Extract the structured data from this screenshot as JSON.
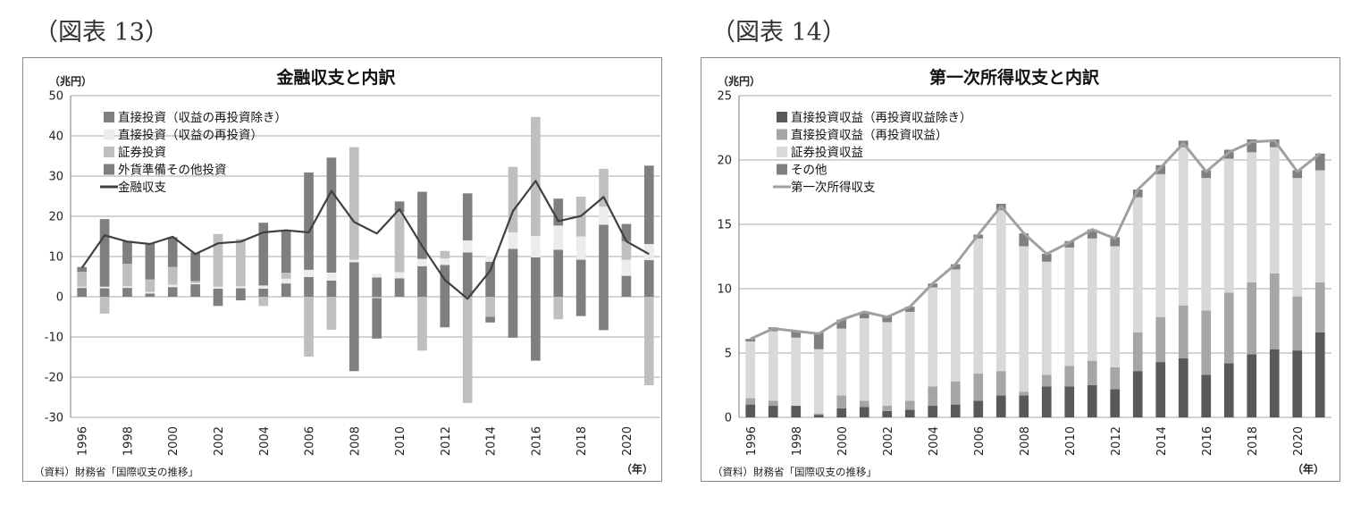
{
  "figures": [
    {
      "label": "（図表 13）"
    },
    {
      "label": "（図表 14）"
    }
  ],
  "chart_data": [
    {
      "type": "bar",
      "stacked": true,
      "title": "金融収支と内訳",
      "unit_label": "（兆円）",
      "x_unit_label": "（年）",
      "source": "（資料）財務省「国際収支の推移」",
      "ylim": [
        -30,
        50
      ],
      "yticks": [
        50,
        40,
        30,
        20,
        10,
        0,
        -10,
        -20,
        -30
      ],
      "grid": true,
      "legend_position": "top-left",
      "x": [
        1996,
        1997,
        1998,
        1999,
        2000,
        2001,
        2002,
        2003,
        2004,
        2005,
        2006,
        2007,
        2008,
        2009,
        2010,
        2011,
        2012,
        2013,
        2014,
        2015,
        2016,
        2017,
        2018,
        2019,
        2020,
        2021
      ],
      "x_tick_labels": [
        "1996",
        "1998",
        "2000",
        "2002",
        "2004",
        "2006",
        "2008",
        "2010",
        "2012",
        "2014",
        "2016",
        "2018",
        "2020"
      ],
      "series": [
        {
          "name": "直接投資（収益の再投資除き）",
          "color": "#7f7f7f",
          "values": [
            2.2,
            2.1,
            2.2,
            0.8,
            2.4,
            3.1,
            2.0,
            2.1,
            2.0,
            3.3,
            4.9,
            4.0,
            8.6,
            4.8,
            4.6,
            7.6,
            7.9,
            11.0,
            8.7,
            11.9,
            9.8,
            11.7,
            9.2,
            17.9,
            5.2,
            9.1
          ]
        },
        {
          "name": "直接投資（収益の再投資）",
          "color": "#ececec",
          "values": [
            0.3,
            0.4,
            0.4,
            0.4,
            0.6,
            0.3,
            0.5,
            0.5,
            0.8,
            1.2,
            1.8,
            2.0,
            0.6,
            0.9,
            1.5,
            1.8,
            1.6,
            3.0,
            1.5,
            4.1,
            5.3,
            6.0,
            5.8,
            4.5,
            4.0,
            4.0
          ]
        },
        {
          "name": "証券投資",
          "color": "#bfbfbf",
          "values": [
            3.7,
            -4.2,
            5.6,
            3.1,
            4.4,
            0.5,
            13.1,
            11.7,
            -2.3,
            1.5,
            -14.9,
            -8.2,
            28.0,
            -0.4,
            15.0,
            -13.4,
            1.9,
            -26.4,
            -5.0,
            16.3,
            29.6,
            -5.6,
            9.9,
            9.4,
            4.6,
            -22.0
          ]
        },
        {
          "name": "外貨準備その他投資",
          "color": "#7f7f7f",
          "values": [
            1.2,
            16.8,
            5.7,
            9.0,
            7.4,
            7.0,
            -2.3,
            -0.9,
            15.6,
            10.5,
            24.2,
            28.6,
            -18.5,
            -10.0,
            2.6,
            16.7,
            -7.6,
            11.7,
            -1.4,
            -10.2,
            -15.9,
            6.7,
            -4.8,
            -8.3,
            4.3,
            19.5
          ]
        }
      ],
      "line": {
        "name": "金融収支",
        "color": "#404040",
        "values": [
          7.2,
          15.3,
          13.7,
          13.1,
          14.9,
          10.6,
          13.3,
          13.7,
          16.0,
          16.5,
          16.0,
          26.3,
          18.6,
          15.7,
          21.8,
          12.6,
          4.2,
          -0.5,
          6.5,
          21.3,
          28.8,
          18.8,
          20.1,
          24.8,
          13.8,
          10.6
        ]
      }
    },
    {
      "type": "bar",
      "stacked": true,
      "title": "第一次所得収支と内訳",
      "unit_label": "（兆円）",
      "x_unit_label": "（年）",
      "source": "（資料）財務省「国際収支の推移」",
      "ylim": [
        0,
        25
      ],
      "yticks": [
        25,
        20,
        15,
        10,
        5,
        0
      ],
      "grid": true,
      "legend_position": "top-left",
      "x": [
        1996,
        1997,
        1998,
        1999,
        2000,
        2001,
        2002,
        2003,
        2004,
        2005,
        2006,
        2007,
        2008,
        2009,
        2010,
        2011,
        2012,
        2013,
        2014,
        2015,
        2016,
        2017,
        2018,
        2019,
        2020,
        2021
      ],
      "x_tick_labels": [
        "1996",
        "1998",
        "2000",
        "2002",
        "2004",
        "2006",
        "2008",
        "2010",
        "2012",
        "2014",
        "2016",
        "2018",
        "2020"
      ],
      "series": [
        {
          "name": "直接投資収益（再投資収益除き）",
          "color": "#595959",
          "values": [
            1.0,
            0.9,
            0.9,
            0.2,
            0.7,
            0.8,
            0.5,
            0.6,
            0.9,
            1.0,
            1.3,
            1.7,
            1.7,
            2.4,
            2.4,
            2.5,
            2.2,
            3.6,
            4.3,
            4.6,
            3.3,
            4.2,
            4.9,
            5.3,
            5.2,
            6.6
          ]
        },
        {
          "name": "直接投資収益（再投資収益）",
          "color": "#a6a6a6",
          "values": [
            0.5,
            0.4,
            0.0,
            0.1,
            1.0,
            0.5,
            0.4,
            0.7,
            1.5,
            1.8,
            2.1,
            1.9,
            0.3,
            0.9,
            1.6,
            1.9,
            1.7,
            3.0,
            3.5,
            4.1,
            5.0,
            5.5,
            5.6,
            5.9,
            4.2,
            3.9
          ]
        },
        {
          "name": "証券投資収益",
          "color": "#d9d9d9",
          "values": [
            4.4,
            5.4,
            5.3,
            5.0,
            5.2,
            6.4,
            6.5,
            6.9,
            7.7,
            8.7,
            10.5,
            12.5,
            11.3,
            8.8,
            9.2,
            9.5,
            9.4,
            10.5,
            11.1,
            12.3,
            10.3,
            10.4,
            10.1,
            9.8,
            9.2,
            8.7
          ]
        },
        {
          "name": "その他",
          "color": "#808080",
          "values": [
            0.2,
            0.3,
            0.5,
            1.3,
            0.7,
            0.5,
            0.5,
            0.4,
            0.3,
            0.4,
            0.3,
            0.5,
            1.0,
            0.6,
            0.5,
            0.7,
            0.7,
            0.6,
            0.7,
            0.5,
            0.6,
            0.7,
            1.0,
            0.6,
            0.6,
            1.3
          ]
        }
      ],
      "line": {
        "name": "第一次所得収支",
        "color": "#a0a0a0",
        "values": [
          6.1,
          6.9,
          6.7,
          6.5,
          7.6,
          8.2,
          7.8,
          8.6,
          10.4,
          11.9,
          14.2,
          16.4,
          14.3,
          12.7,
          13.6,
          14.6,
          13.9,
          17.7,
          19.4,
          21.3,
          19.1,
          20.6,
          21.4,
          21.5,
          19.1,
          20.5
        ]
      }
    }
  ]
}
